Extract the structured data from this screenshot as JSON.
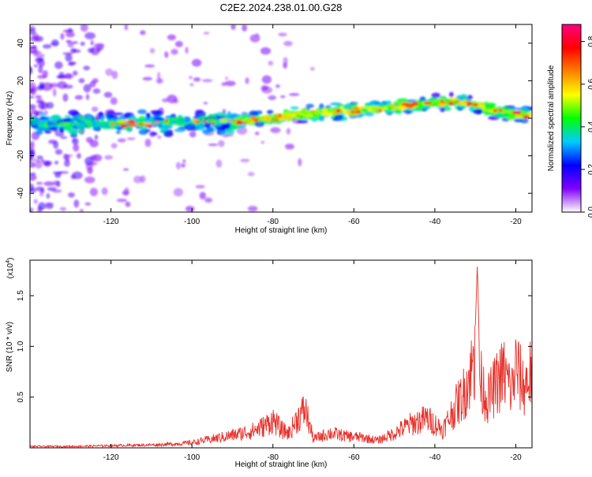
{
  "title": "C2E2.2024.238.01.00.G28",
  "chart_data": [
    {
      "type": "heatmap",
      "xlabel": "Height of straight line (km)",
      "ylabel": "Frequency (Hz)",
      "xlim": [
        -140,
        -16
      ],
      "ylim": [
        -50,
        50
      ],
      "x_ticks": [
        -120,
        -100,
        -80,
        -60,
        -40,
        -20
      ],
      "y_ticks": [
        -40,
        -20,
        0,
        20,
        40
      ],
      "ridge": {
        "x": [
          -140,
          -120,
          -100,
          -90,
          -80,
          -70,
          -60,
          -50,
          -40,
          -35,
          -30,
          -25,
          -20,
          -16
        ],
        "y": [
          -3,
          -3,
          -2,
          -2,
          0,
          3,
          4,
          6,
          8,
          9,
          7,
          4,
          2,
          2
        ]
      },
      "colorbar": {
        "label": "Normalized spectral amplitude",
        "range": [
          0,
          0.88
        ],
        "ticks": [
          0.0,
          0.2,
          0.4,
          0.6,
          0.8
        ],
        "tick_labels": [
          "0.0",
          "0.2",
          "0.4",
          "0.6",
          "0.8"
        ],
        "colors": [
          "#ffffff",
          "#8000ff",
          "#0000ff",
          "#00ccff",
          "#00ff00",
          "#ffff00",
          "#ff8000",
          "#ff0000",
          "#ff0080"
        ]
      },
      "colors": {
        "band_low": "#c9a8f5",
        "band_mid": "#5a00e0"
      }
    },
    {
      "type": "line",
      "xlabel": "Height of straight line (km)",
      "ylabel": "SNR (10 * v/v)",
      "scale_label": "(x10",
      "scale_exp": "4",
      "scale_close": ")",
      "xlim": [
        -140,
        -16
      ],
      "ylim": [
        0,
        1.85
      ],
      "x_ticks": [
        -120,
        -100,
        -80,
        -60,
        -40,
        -20
      ],
      "y_ticks": [
        0.5,
        1.0,
        1.5
      ],
      "y_tick_labels": [
        "0.5",
        "1.0",
        "1.5"
      ],
      "series": [
        {
          "color": "#e8302a",
          "x": [
            -140,
            -130,
            -120,
            -110,
            -105,
            -100,
            -95,
            -90,
            -85,
            -82,
            -80,
            -78,
            -76,
            -74,
            -72,
            -70,
            -66,
            -62,
            -58,
            -54,
            -50,
            -46,
            -42,
            -38,
            -35,
            -33,
            -31,
            -30,
            -29.5,
            -29,
            -27,
            -25,
            -23,
            -21,
            -20,
            -18,
            -16
          ],
          "y": [
            0.02,
            0.02,
            0.03,
            0.04,
            0.05,
            0.07,
            0.12,
            0.17,
            0.23,
            0.3,
            0.38,
            0.25,
            0.2,
            0.4,
            0.52,
            0.12,
            0.2,
            0.16,
            0.14,
            0.1,
            0.2,
            0.32,
            0.4,
            0.25,
            0.55,
            0.72,
            1.05,
            1.2,
            1.82,
            0.95,
            0.65,
            0.85,
            1.02,
            0.78,
            1.1,
            0.82,
            1.05
          ]
        }
      ]
    }
  ]
}
